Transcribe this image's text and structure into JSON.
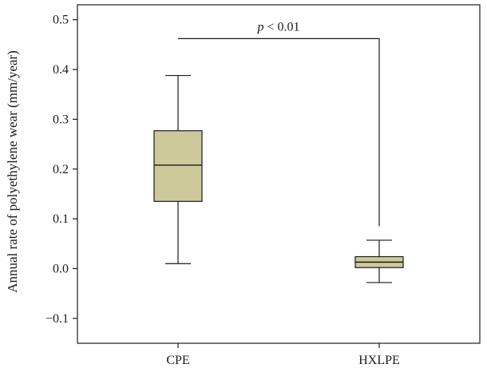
{
  "chart_data": {
    "type": "box",
    "title": "",
    "xlabel": "",
    "ylabel": "Annual rate of polyethylene wear (mm/year)",
    "ylim": [
      -0.15,
      0.53
    ],
    "y_ticks": [
      -0.1,
      0.0,
      0.1,
      0.2,
      0.3,
      0.4,
      0.5
    ],
    "y_tick_labels": [
      "−0.1",
      "0.0",
      "0.1",
      "0.2",
      "0.3",
      "0.4",
      "0.5"
    ],
    "categories": [
      "CPE",
      "HXLPE"
    ],
    "boxes": [
      {
        "category": "CPE",
        "whisker_low": 0.01,
        "q1": 0.135,
        "median": 0.208,
        "q3": 0.277,
        "whisker_high": 0.388
      },
      {
        "category": "HXLPE",
        "whisker_low": -0.028,
        "q1": 0.002,
        "median": 0.013,
        "q3": 0.024,
        "whisker_high": 0.057
      }
    ],
    "significance": {
      "label_italic": "p",
      "label_rest": " < 0.01",
      "bracket_top": 0.462,
      "left_end": 0.462,
      "right_end": 0.085
    },
    "box_fill": "#cdc99a",
    "stroke": "#1a1a1a",
    "grid": false
  }
}
